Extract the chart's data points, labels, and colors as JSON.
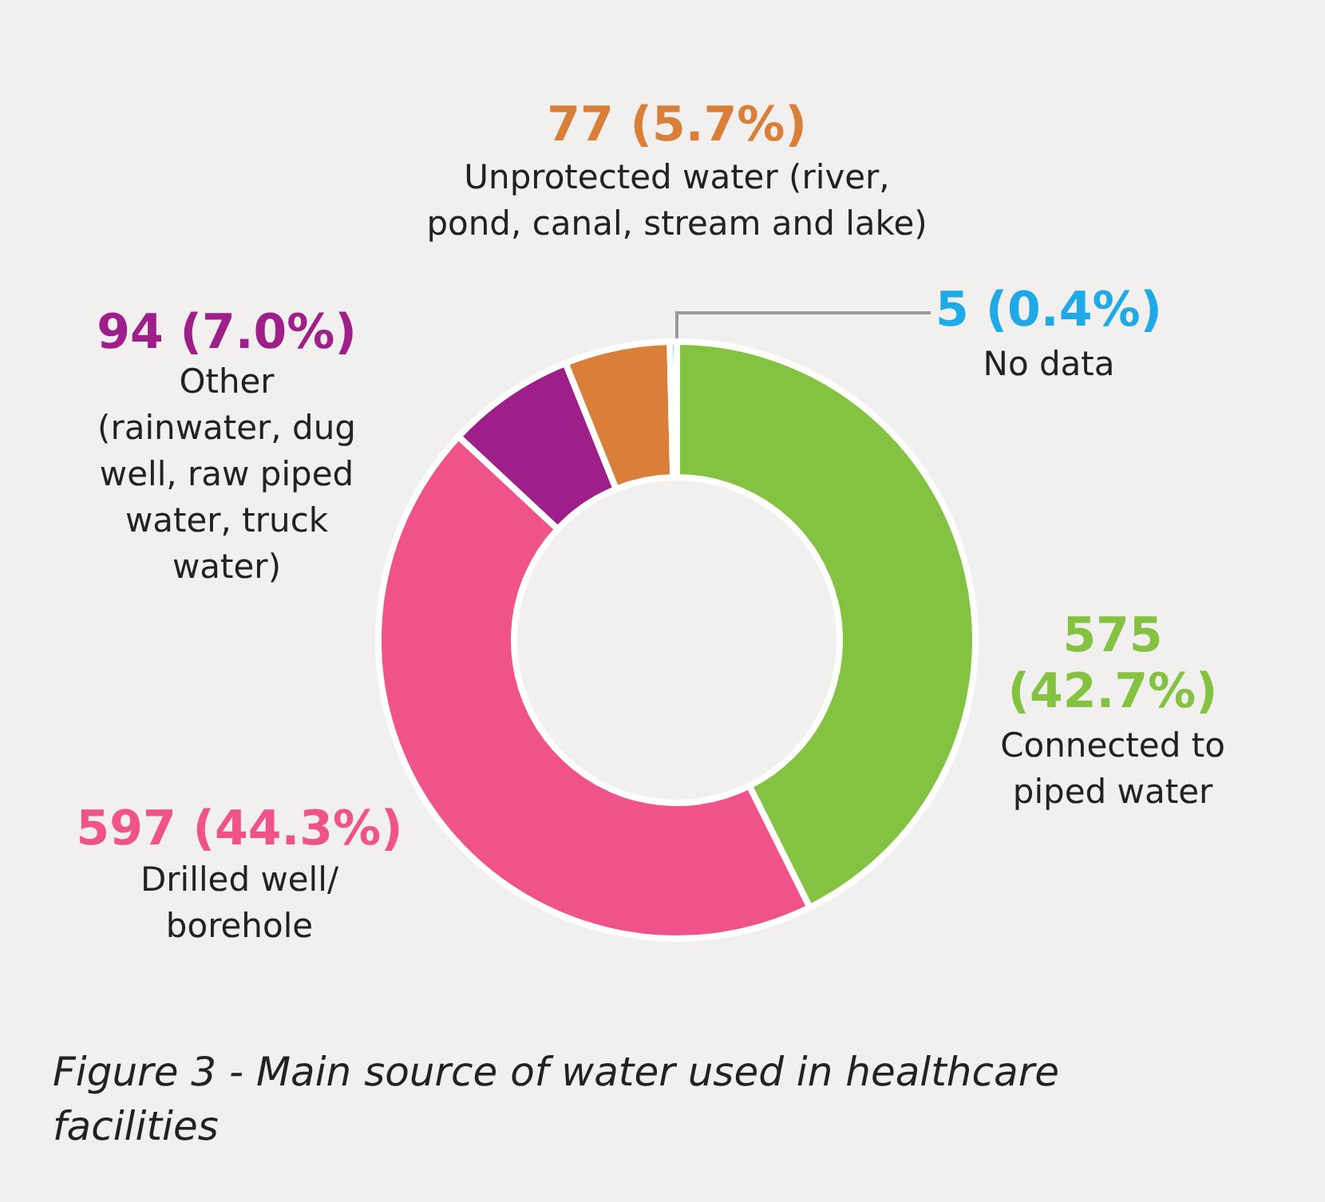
{
  "chart_data": {
    "type": "donut",
    "categories": [
      "Connected to piped water",
      "Drilled well/ borehole",
      "Other (rainwater, dug well, raw piped water, truck water)",
      "Unprotected water (river, pond, canal, stream and lake)",
      "No data"
    ],
    "values": [
      575,
      597,
      94,
      77,
      5
    ],
    "value_labels": [
      "575 (42.7%)",
      "597 (44.3%)",
      "94 (7.0%)",
      "77 (5.7%)",
      "5 (0.4%)"
    ],
    "colors": [
      "#84c341",
      "#ef538a",
      "#9e1f8a",
      "#d97f3a",
      "#1fa9e6"
    ],
    "annotations": [
      "Figure 3 - Main source of water used in healthcare facilities"
    ]
  }
}
